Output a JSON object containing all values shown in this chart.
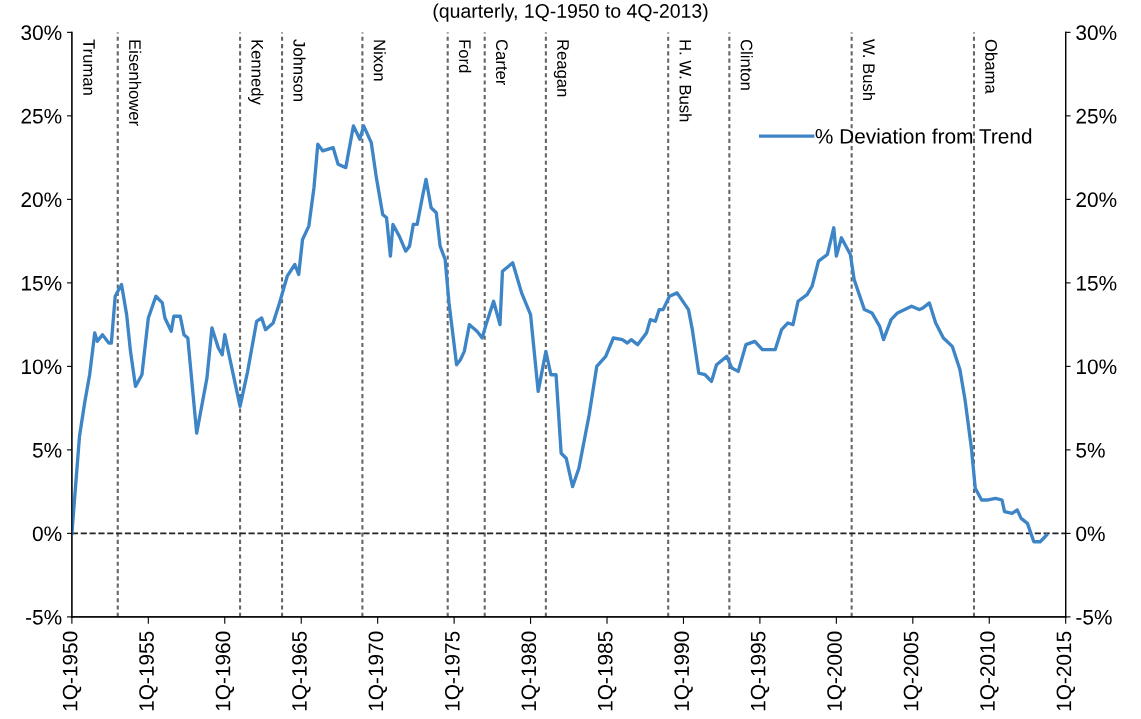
{
  "chart_data": {
    "type": "line",
    "title": "(quarterly, 1Q-1950 to 4Q-2013)",
    "annotations": [
      "Truman"
    ],
    "xlim": [
      "1950-01",
      "2015-01"
    ],
    "xticks": [
      {
        "value": "1950-01",
        "label": "1Q-1950"
      },
      {
        "value": "1955-01",
        "label": "1Q-1955"
      },
      {
        "value": "1960-01",
        "label": "1Q-1960"
      },
      {
        "value": "1965-01",
        "label": "1Q-1965"
      },
      {
        "value": "1970-01",
        "label": "1Q-1970"
      },
      {
        "value": "1975-01",
        "label": "1Q-1975"
      },
      {
        "value": "1980-01",
        "label": "1Q-1980"
      },
      {
        "value": "1985-01",
        "label": "1Q-1985"
      },
      {
        "value": "1990-01",
        "label": "1Q-1990"
      },
      {
        "value": "1995-01",
        "label": "1Q-1995"
      },
      {
        "value": "2000-01",
        "label": "1Q-2000"
      },
      {
        "value": "2005-01",
        "label": "1Q-2005"
      },
      {
        "value": "2010-01",
        "label": "1Q-2010"
      },
      {
        "value": "2015-01",
        "label": "1Q-2015"
      }
    ],
    "ylim": [
      -5,
      30
    ],
    "yticks": [
      {
        "value": -5,
        "label": "-5%"
      },
      {
        "value": 0,
        "label": "0%"
      },
      {
        "value": 5,
        "label": "5%"
      },
      {
        "value": 10,
        "label": "10%"
      },
      {
        "value": 15,
        "label": "15%"
      },
      {
        "value": 20,
        "label": "20%"
      },
      {
        "value": 25,
        "label": "25%"
      },
      {
        "value": 30,
        "label": "30%"
      }
    ],
    "y2lim": [
      -5,
      30
    ],
    "y2ticks": [
      {
        "value": -5,
        "label": "-5%"
      },
      {
        "value": 0,
        "label": "0%"
      },
      {
        "value": 5,
        "label": "5%"
      },
      {
        "value": 10,
        "label": "10%"
      },
      {
        "value": 15,
        "label": "15%"
      },
      {
        "value": 20,
        "label": "20%"
      },
      {
        "value": 25,
        "label": "25%"
      },
      {
        "value": 30,
        "label": "30%"
      }
    ],
    "grid": false,
    "legend": "top right",
    "marker": "none",
    "line_style": "solid",
    "ref_lines": [
      {
        "axis": "y",
        "value": 0,
        "label": null,
        "color": "#222222",
        "line_style": "dashed"
      },
      {
        "axis": "x",
        "value": "1953-01",
        "label": "Eisenhower",
        "color": "#666666",
        "line_style": "dotted"
      },
      {
        "axis": "x",
        "value": "1961-01",
        "label": "Kennedy",
        "color": "#666666",
        "line_style": "dotted"
      },
      {
        "axis": "x",
        "value": "1963-10",
        "label": "Johnson",
        "color": "#666666",
        "line_style": "dotted"
      },
      {
        "axis": "x",
        "value": "1969-01",
        "label": "Nixon",
        "color": "#666666",
        "line_style": "dotted"
      },
      {
        "axis": "x",
        "value": "1974-08",
        "label": "Ford",
        "color": "#666666",
        "line_style": "dotted"
      },
      {
        "axis": "x",
        "value": "1977-01",
        "label": "Carter",
        "color": "#666666",
        "line_style": "dotted"
      },
      {
        "axis": "x",
        "value": "1981-01",
        "label": "Reagan",
        "color": "#666666",
        "line_style": "dotted"
      },
      {
        "axis": "x",
        "value": "1989-01",
        "label": "H. W. Bush",
        "color": "#666666",
        "line_style": "dotted"
      },
      {
        "axis": "x",
        "value": "1993-01",
        "label": "Clinton",
        "color": "#666666",
        "line_style": "dotted"
      },
      {
        "axis": "x",
        "value": "2001-01",
        "label": "W. Bush",
        "color": "#666666",
        "line_style": "dotted"
      },
      {
        "axis": "x",
        "value": "2009-01",
        "label": "Obama",
        "color": "#666666",
        "line_style": "dotted"
      }
    ],
    "series": [
      {
        "name": "% Deviation from Trend",
        "color": "#3d85c6",
        "x": [
          "1950-01",
          "1950-07",
          "1950-11",
          "1951-03",
          "1951-07",
          "1951-09",
          "1952-01",
          "1952-06",
          "1952-08",
          "1952-11",
          "1953-04",
          "1953-08",
          "1953-11",
          "1954-03",
          "1954-08",
          "1955-01",
          "1955-07",
          "1955-12",
          "1956-02",
          "1956-07",
          "1956-09",
          "1957-02",
          "1957-05",
          "1957-08",
          "1958-03",
          "1958-11",
          "1959-03",
          "1959-08",
          "1959-11",
          "1960-01",
          "1960-06",
          "1961-01",
          "1961-07",
          "1962-02",
          "1962-06",
          "1962-09",
          "1963-03",
          "1963-08",
          "1964-02",
          "1964-08",
          "1964-11",
          "1965-02",
          "1965-07",
          "1965-11",
          "1966-02",
          "1966-06",
          "1967-02",
          "1967-06",
          "1967-12",
          "1968-06",
          "1968-11",
          "1969-02",
          "1969-08",
          "1969-12",
          "1970-05",
          "1970-08",
          "1970-11",
          "1971-01",
          "1971-06",
          "1971-11",
          "1972-02",
          "1972-05",
          "1972-08",
          "1972-12",
          "1973-03",
          "1973-07",
          "1973-11",
          "1974-02",
          "1974-06",
          "1974-09",
          "1975-03",
          "1975-06",
          "1975-09",
          "1976-01",
          "1976-07",
          "1976-11",
          "1977-02",
          "1977-08",
          "1978-01",
          "1978-03",
          "1978-11",
          "1979-06",
          "1980-01",
          "1980-07",
          "1981-01",
          "1981-05",
          "1981-09",
          "1982-01",
          "1982-05",
          "1982-10",
          "1983-03",
          "1983-11",
          "1984-05",
          "1984-12",
          "1985-06",
          "1986-01",
          "1986-05",
          "1986-08",
          "1987-01",
          "1987-08",
          "1987-11",
          "1988-03",
          "1988-06",
          "1988-09",
          "1989-02",
          "1989-08",
          "1990-05",
          "1990-08",
          "1991-01",
          "1991-06",
          "1991-11",
          "1992-03",
          "1992-11",
          "1993-03",
          "1993-08",
          "1994-02",
          "1994-09",
          "1995-03",
          "1996-01",
          "1996-06",
          "1996-11",
          "1997-03",
          "1997-07",
          "1998-02",
          "1998-06",
          "1998-11",
          "1999-06",
          "1999-11",
          "2000-01",
          "2000-05",
          "2000-12",
          "2001-03",
          "2001-11",
          "2002-05",
          "2002-11",
          "2003-02",
          "2003-08",
          "2004-01",
          "2004-12",
          "2005-06",
          "2005-09",
          "2006-02",
          "2006-07",
          "2007-01",
          "2007-08",
          "2008-02",
          "2008-06",
          "2008-11",
          "2009-02",
          "2009-07",
          "2009-12",
          "2010-06",
          "2010-11",
          "2011-01",
          "2011-07",
          "2011-11",
          "2012-02",
          "2012-07",
          "2012-12",
          "2013-05",
          "2013-10"
        ],
        "values": [
          0,
          5.8,
          7.8,
          9.5,
          12.0,
          11.5,
          11.9,
          11.4,
          11.4,
          14.2,
          14.9,
          13.1,
          10.9,
          8.8,
          9.5,
          12.9,
          14.2,
          13.8,
          12.9,
          12.1,
          13.0,
          13.0,
          11.9,
          11.7,
          6.0,
          9.3,
          12.3,
          11.1,
          10.7,
          11.9,
          10.1,
          7.6,
          9.7,
          12.7,
          12.9,
          12.2,
          12.6,
          13.8,
          15.4,
          16.1,
          15.5,
          17.6,
          18.4,
          20.7,
          23.3,
          22.9,
          23.1,
          22.1,
          21.9,
          24.4,
          23.6,
          24.4,
          23.4,
          21.3,
          19.1,
          18.9,
          16.6,
          18.5,
          17.8,
          16.9,
          17.2,
          18.5,
          18.5,
          20.1,
          21.2,
          19.5,
          19.2,
          17.2,
          16.4,
          13.8,
          10.1,
          10.4,
          10.9,
          12.5,
          12.1,
          11.7,
          12.5,
          13.9,
          12.5,
          15.7,
          16.2,
          14.4,
          13.1,
          8.5,
          10.9,
          9.5,
          9.5,
          4.8,
          4.5,
          2.8,
          3.9,
          7.1,
          10.0,
          10.6,
          11.7,
          11.6,
          11.4,
          11.6,
          11.3,
          12.0,
          12.8,
          12.7,
          13.4,
          13.4,
          14.2,
          14.4,
          13.4,
          12.2,
          9.6,
          9.5,
          9.1,
          10.1,
          10.6,
          9.9,
          9.7,
          11.3,
          11.5,
          11.0,
          11.0,
          12.2,
          12.6,
          12.5,
          13.9,
          14.3,
          14.8,
          16.3,
          16.7,
          18.3,
          16.6,
          17.7,
          16.7,
          15.2,
          13.4,
          13.2,
          12.4,
          11.6,
          12.8,
          13.2,
          13.6,
          13.4,
          13.5,
          13.8,
          12.6,
          11.7,
          11.2,
          9.8,
          8.0,
          5.1,
          2.7,
          2.0,
          2.0,
          2.1,
          2.0,
          1.3,
          1.2,
          1.4,
          0.9,
          0.6,
          -0.5,
          -0.5,
          -0.1
        ]
      }
    ]
  }
}
